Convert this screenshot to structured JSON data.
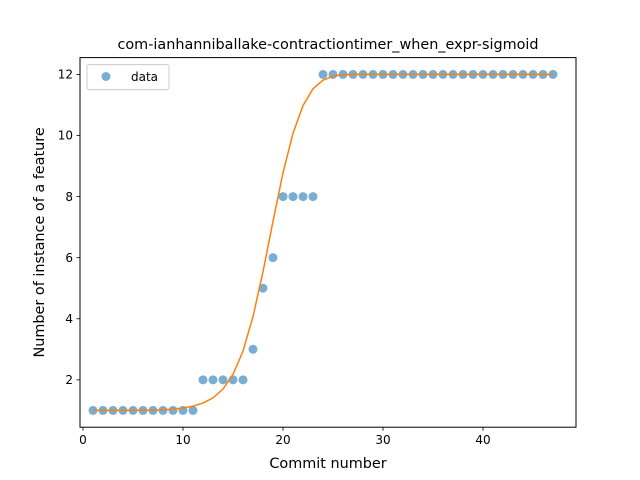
{
  "chart_data": {
    "type": "scatter",
    "title": "com-ianhanniballake-contractiontimer_when_expr-sigmoid",
    "xlabel": "Commit number",
    "ylabel": "Number of instance of a feature",
    "xlim": [
      -0.3,
      49.3
    ],
    "ylim": [
      0.45,
      12.55
    ],
    "xticks": [
      0,
      10,
      20,
      30,
      40
    ],
    "yticks": [
      2,
      4,
      6,
      8,
      10,
      12
    ],
    "legend": {
      "position": "top-left",
      "entries": [
        "data"
      ]
    },
    "grid": false,
    "series": [
      {
        "name": "data",
        "kind": "points",
        "color": "#1f77b4",
        "x": [
          1,
          2,
          3,
          4,
          5,
          6,
          7,
          8,
          9,
          10,
          11,
          12,
          13,
          14,
          15,
          16,
          17,
          18,
          19,
          20,
          21,
          22,
          23,
          24,
          25,
          26,
          27,
          28,
          29,
          30,
          31,
          32,
          33,
          34,
          35,
          36,
          37,
          38,
          39,
          40,
          41,
          42,
          43,
          44,
          45,
          46,
          47
        ],
        "y": [
          1,
          1,
          1,
          1,
          1,
          1,
          1,
          1,
          1,
          1,
          1,
          2,
          2,
          2,
          2,
          2,
          3,
          5,
          6,
          8,
          8,
          8,
          8,
          12,
          12,
          12,
          12,
          12,
          12,
          12,
          12,
          12,
          12,
          12,
          12,
          12,
          12,
          12,
          12,
          12,
          12,
          12,
          12,
          12,
          12,
          12,
          12
        ]
      },
      {
        "kind": "line",
        "color": "#ff7f0e",
        "x": [
          1,
          2,
          3,
          4,
          5,
          6,
          7,
          8,
          9,
          10,
          11,
          12,
          13,
          14,
          15,
          16,
          17,
          18,
          19,
          20,
          21,
          22,
          23,
          24,
          25,
          26,
          27,
          28,
          29,
          30,
          31,
          32,
          33,
          34,
          35,
          36,
          37,
          38,
          39,
          40,
          41,
          42,
          43,
          44,
          45,
          46,
          47
        ],
        "y": [
          1.0,
          1.0,
          1.0,
          1.0,
          1.0,
          1.01,
          1.01,
          1.02,
          1.04,
          1.08,
          1.14,
          1.24,
          1.41,
          1.7,
          2.18,
          2.94,
          4.07,
          5.54,
          7.19,
          8.78,
          10.07,
          10.98,
          11.53,
          11.81,
          11.94,
          11.99,
          12.0,
          12.0,
          12.0,
          12.0,
          12.0,
          12.0,
          12.0,
          12.0,
          12.0,
          12.0,
          12.0,
          12.0,
          12.0,
          12.0,
          12.0,
          12.0,
          12.0,
          12.0,
          12.0,
          12.0,
          12.0
        ]
      }
    ]
  }
}
